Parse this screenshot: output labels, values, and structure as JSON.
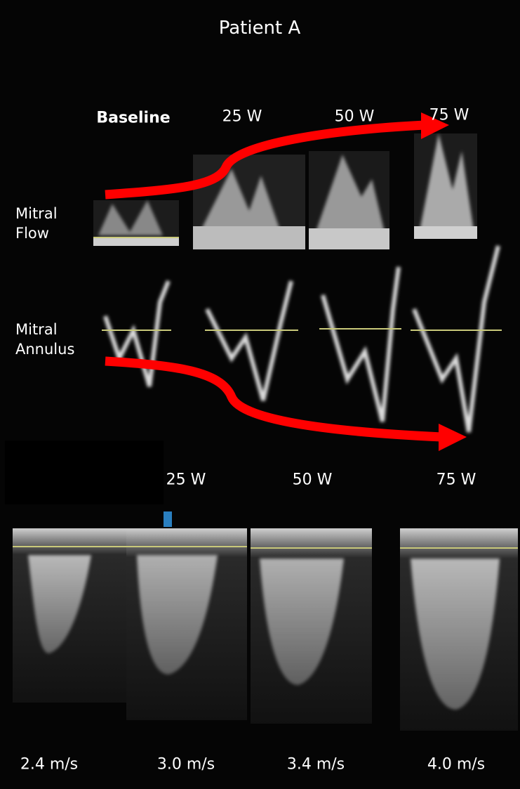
{
  "title": "Patient A",
  "top_panel": {
    "stages": [
      "Baseline",
      "25 W",
      "50 W",
      "75 W"
    ],
    "rows": [
      {
        "label": "Mitral Flow"
      },
      {
        "label": "Mitral Annulus"
      }
    ]
  },
  "bottom_panel": {
    "stages": [
      "25 W",
      "50 W",
      "75 W"
    ],
    "velocities": [
      "2.4 m/s",
      "3.0 m/s",
      "3.4 m/s",
      "4.0 m/s"
    ]
  }
}
